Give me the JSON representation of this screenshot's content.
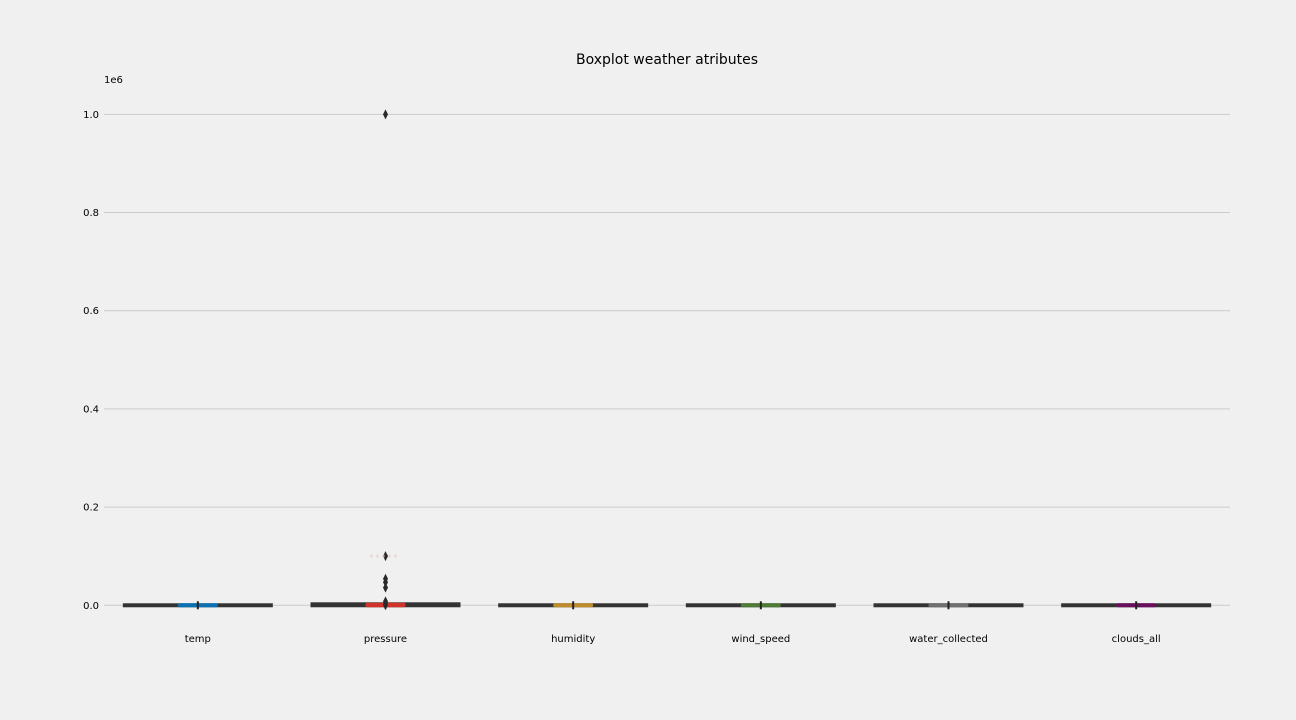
{
  "chart_data": {
    "type": "boxplot",
    "title": "Boxplot weather atributes",
    "y_offset_label": "1e6",
    "y_range": [
      -0.03,
      1.07
    ],
    "y_ticks": [
      0.0,
      0.2,
      0.4,
      0.6,
      0.8,
      1.0
    ],
    "y_tick_labels": [
      "0.0",
      "0.2",
      "0.4",
      "0.6",
      "0.8",
      "1.0"
    ],
    "grid": "horizontal",
    "categories": [
      "temp",
      "pressure",
      "humidity",
      "wind_speed",
      "water_collected",
      "clouds_all"
    ],
    "boxes": [
      {
        "name": "temp",
        "color": "#0b6fb3",
        "q1": 0.0,
        "median": 0.0,
        "q3": 0.0,
        "whisker_low": 0.0,
        "whisker_high": 0.0,
        "outliers": []
      },
      {
        "name": "pressure",
        "color": "#d1322a",
        "q1": 0.0,
        "median": 0.001,
        "q3": 0.001,
        "whisker_low": 0.0,
        "whisker_high": 0.002,
        "outliers": [
          0.0,
          0.004,
          0.008,
          0.036,
          0.047,
          0.054,
          0.1,
          1.0
        ]
      },
      {
        "name": "humidity",
        "color": "#c08b2b",
        "q1": 0.0,
        "median": 0.0,
        "q3": 0.0,
        "whisker_low": 0.0,
        "whisker_high": 0.0,
        "outliers": []
      },
      {
        "name": "wind_speed",
        "color": "#4f7a35",
        "q1": 0.0,
        "median": 0.0,
        "q3": 0.0,
        "whisker_low": 0.0,
        "whisker_high": 0.0,
        "outliers": []
      },
      {
        "name": "water_collected",
        "color": "#6f6f6f",
        "q1": 0.0,
        "median": 0.0,
        "q3": 0.0,
        "whisker_low": 0.0,
        "whisker_high": 0.0,
        "outliers": []
      },
      {
        "name": "clouds_all",
        "color": "#6a0f5e",
        "q1": 0.0,
        "median": 0.0,
        "q3": 0.0,
        "whisker_low": 0.0,
        "whisker_high": 0.0,
        "outliers": []
      }
    ]
  }
}
